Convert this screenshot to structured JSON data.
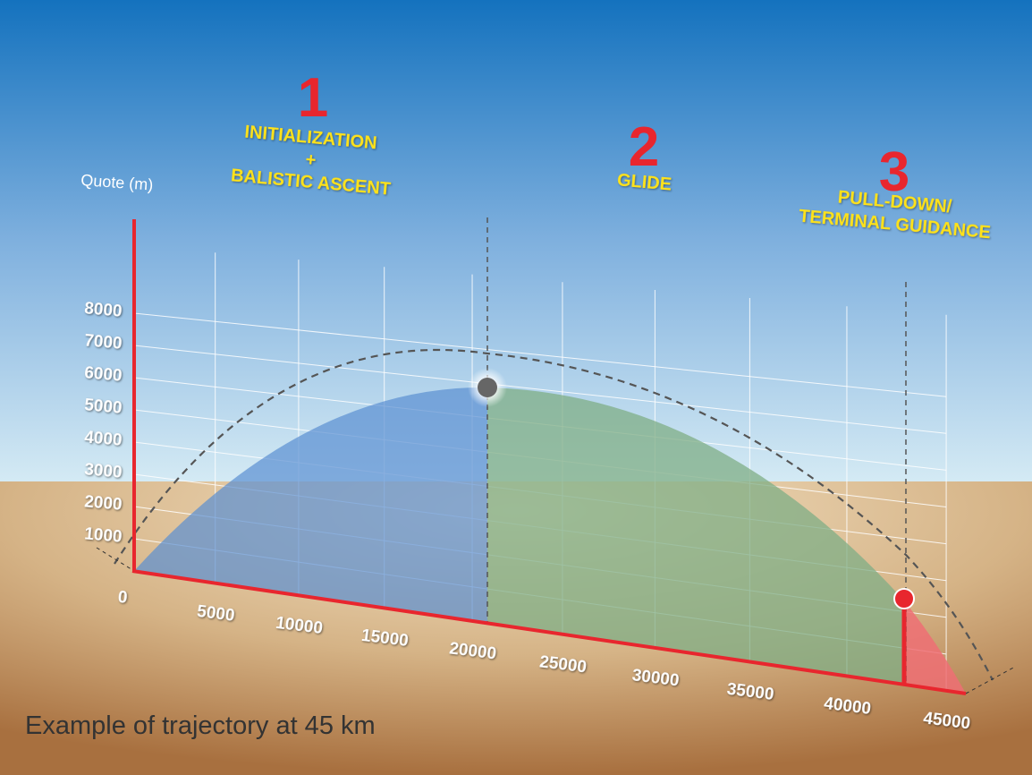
{
  "phases": [
    {
      "number": "1",
      "lines": [
        "INITIALIZATION",
        "+",
        "BALISTIC ASCENT"
      ]
    },
    {
      "number": "2",
      "lines": [
        "GLIDE"
      ]
    },
    {
      "number": "3",
      "lines": [
        "PULL-DOWN/",
        "TERMINAL GUIDANCE"
      ]
    }
  ],
  "y_axis": {
    "label": "Quote (m)",
    "ticks": [
      0,
      1000,
      2000,
      3000,
      4000,
      5000,
      6000,
      7000,
      8000
    ]
  },
  "x_axis": {
    "ticks": [
      5000,
      10000,
      15000,
      20000,
      25000,
      30000,
      35000,
      40000,
      45000
    ]
  },
  "caption": "Example of trajectory at 45 km"
}
